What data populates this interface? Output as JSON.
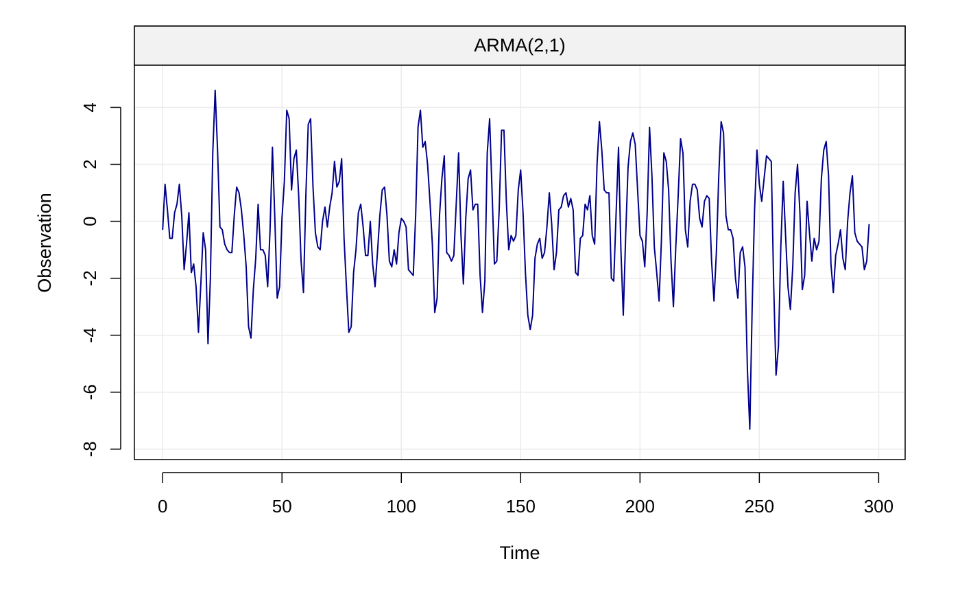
{
  "chart_data": {
    "type": "line",
    "title": "ARMA(2,1)",
    "xlabel": "Time",
    "ylabel": "Observation",
    "xlim": [
      0,
      300
    ],
    "ylim": [
      -8,
      4.5
    ],
    "x_ticks": [
      "0",
      "50",
      "100",
      "150",
      "200",
      "250",
      "300"
    ],
    "y_ticks": [
      "4",
      "2",
      "0",
      "-2",
      "-4",
      "-6",
      "-8"
    ],
    "grid": true,
    "line_color": "#00008B",
    "strip_color": "#f2f2f2",
    "series": [
      {
        "x_start": 0,
        "x_step": 1,
        "values": [
          -0.3,
          1.3,
          0.4,
          -0.6,
          -0.6,
          0.3,
          0.6,
          1.3,
          0.2,
          -1.7,
          -0.8,
          0.3,
          -1.8,
          -1.5,
          -2.3,
          -3.9,
          -2.2,
          -0.4,
          -1.0,
          -4.3,
          -2.0,
          2.4,
          4.6,
          2.5,
          -0.2,
          -0.3,
          -0.8,
          -1.0,
          -1.1,
          -1.1,
          0.2,
          1.2,
          1.0,
          0.4,
          -0.5,
          -1.6,
          -3.7,
          -4.1,
          -2.4,
          -1.3,
          0.6,
          -1.0,
          -1.0,
          -1.2,
          -2.3,
          -0.3,
          2.6,
          0.1,
          -2.7,
          -2.3,
          0.1,
          1.4,
          3.9,
          3.6,
          1.1,
          2.2,
          2.5,
          0.9,
          -1.4,
          -2.5,
          0.9,
          3.4,
          3.6,
          1.2,
          -0.4,
          -0.9,
          -1.0,
          0.0,
          0.5,
          -0.2,
          0.5,
          1.0,
          2.1,
          1.2,
          1.4,
          2.2,
          -0.6,
          -2.3,
          -3.9,
          -3.7,
          -1.8,
          -1.0,
          0.3,
          0.6,
          -0.2,
          -1.2,
          -1.2,
          0.0,
          -1.5,
          -2.3,
          -1.1,
          0.2,
          1.1,
          1.2,
          0.2,
          -1.4,
          -1.6,
          -1.0,
          -1.5,
          -0.4,
          0.1,
          0.0,
          -0.2,
          -1.7,
          -1.8,
          -1.9,
          0.2,
          3.3,
          3.9,
          2.6,
          2.8,
          2.0,
          0.7,
          -0.8,
          -3.2,
          -2.7,
          0.2,
          1.5,
          2.3,
          -1.1,
          -1.2,
          -1.4,
          -1.2,
          0.6,
          2.4,
          -0.5,
          -2.2,
          0.1,
          1.5,
          1.8,
          0.4,
          0.6,
          0.6,
          -1.9,
          -3.2,
          -2.1,
          2.4,
          3.6,
          1.1,
          -1.5,
          -1.4,
          0.4,
          3.2,
          3.2,
          0.7,
          -1.0,
          -0.5,
          -0.7,
          -0.5,
          1.1,
          1.8,
          0.3,
          -1.8,
          -3.3,
          -3.8,
          -3.3,
          -1.3,
          -0.8,
          -0.6,
          -1.3,
          -1.1,
          -0.2,
          1.0,
          -0.1,
          -1.7,
          -1.1,
          0.4,
          0.5,
          0.9,
          1.0,
          0.5,
          0.8,
          0.4,
          -1.8,
          -1.9,
          -0.6,
          -0.5,
          0.6,
          0.4,
          0.9,
          -0.5,
          -0.8,
          2.0,
          3.5,
          2.5,
          1.1,
          1.0,
          1.0,
          -2.0,
          -2.1,
          0.3,
          2.6,
          -1.0,
          -3.3,
          -0.5,
          1.9,
          2.8,
          3.1,
          2.7,
          1.1,
          -0.5,
          -0.7,
          -1.6,
          0.3,
          3.3,
          1.6,
          -0.9,
          -1.8,
          -2.8,
          -0.6,
          2.4,
          2.1,
          1.1,
          -1.4,
          -3.0,
          -0.9,
          0.9,
          2.9,
          2.4,
          -0.3,
          -0.9,
          0.7,
          1.3,
          1.3,
          1.1,
          0.1,
          -0.2,
          0.7,
          0.9,
          0.8,
          -1.4,
          -2.8,
          -1.1,
          1.6,
          3.5,
          3.1,
          0.2,
          -0.3,
          -0.3,
          -0.6,
          -2.0,
          -2.7,
          -1.1,
          -0.9,
          -1.6,
          -5.2,
          -7.3,
          -3.0,
          0.4,
          2.5,
          1.3,
          0.7,
          1.5,
          2.3,
          2.2,
          2.1,
          -2.2,
          -5.4,
          -4.4,
          -0.9,
          1.4,
          -0.5,
          -2.3,
          -3.1,
          -1.6,
          1.0,
          2.0,
          0.3,
          -2.4,
          -1.9,
          0.7,
          -0.4,
          -1.4,
          -0.6,
          -1.0,
          -0.7,
          1.5,
          2.5,
          2.8,
          1.6,
          -1.5,
          -2.5,
          -1.2,
          -0.8,
          -0.3,
          -1.3,
          -1.7,
          0.0,
          1.0,
          1.6,
          -0.4,
          -0.7,
          -0.8,
          -0.9,
          -1.7,
          -1.4,
          -0.1
        ]
      }
    ]
  }
}
